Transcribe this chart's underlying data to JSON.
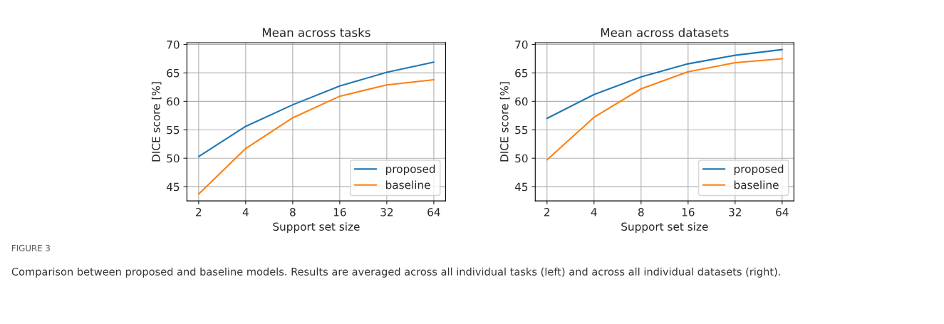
{
  "chart_data": [
    {
      "type": "line",
      "title": "Mean across tasks",
      "xlabel": "Support set size",
      "ylabel": "DICE score [%]",
      "categories": [
        "2",
        "4",
        "8",
        "16",
        "32",
        "64"
      ],
      "series": [
        {
          "name": "proposed",
          "color": "#1f77b4",
          "values": [
            50.3,
            55.6,
            59.4,
            62.7,
            65.1,
            66.9
          ]
        },
        {
          "name": "baseline",
          "color": "#ff7f0e",
          "values": [
            43.7,
            51.7,
            57.1,
            60.9,
            62.9,
            63.8
          ]
        }
      ],
      "ylim": [
        42.5,
        70.3
      ],
      "yticks": [
        45,
        50,
        55,
        60,
        65,
        70
      ],
      "grid": true,
      "legend": "bottom right",
      "annotations": [
        "FIGURE 3",
        "Comparison between proposed and baseline models. Results are averaged across all individual tasks (left) and across all individual datasets (right)."
      ]
    },
    {
      "type": "line",
      "title": "Mean across datasets",
      "xlabel": "Support set size",
      "ylabel": "DICE score [%]",
      "categories": [
        "2",
        "4",
        "8",
        "16",
        "32",
        "64"
      ],
      "series": [
        {
          "name": "proposed",
          "color": "#1f77b4",
          "values": [
            57.0,
            61.2,
            64.3,
            66.6,
            68.1,
            69.1
          ]
        },
        {
          "name": "baseline",
          "color": "#ff7f0e",
          "values": [
            49.7,
            57.2,
            62.2,
            65.2,
            66.8,
            67.5
          ]
        }
      ],
      "ylim": [
        42.5,
        70.3
      ],
      "yticks": [
        45,
        50,
        55,
        60,
        65,
        70
      ],
      "grid": true,
      "legend": "bottom right"
    }
  ]
}
